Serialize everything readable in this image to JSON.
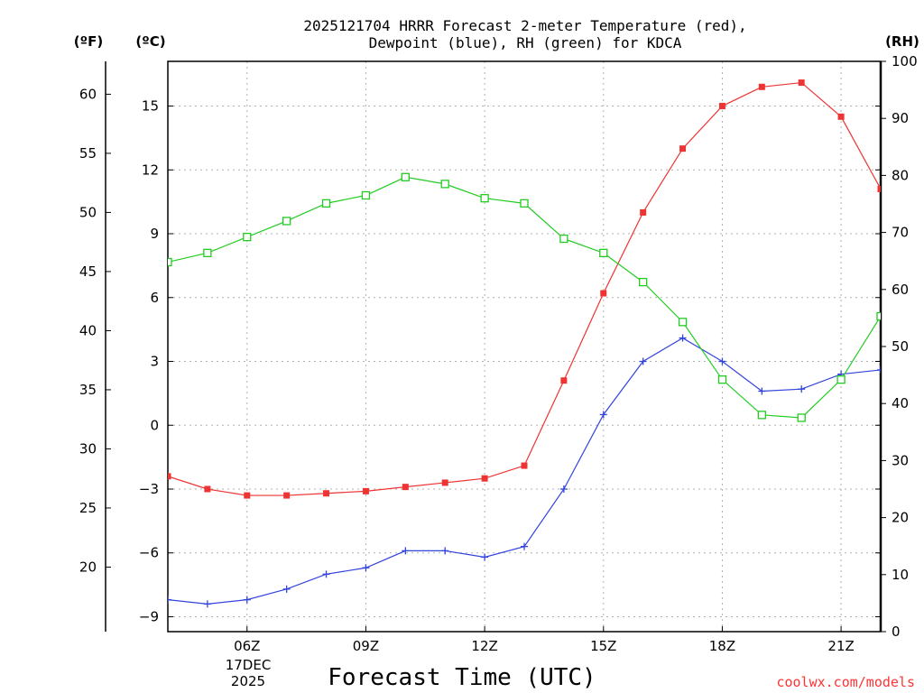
{
  "chart_data": {
    "type": "line",
    "title_line1": "2025121704 HRRR Forecast 2-meter Temperature (red),",
    "title_line2": "Dewpoint (blue), RH (green) for KDCA",
    "xlabel": "Forecast Time (UTC)",
    "date_label_day": "17DEC",
    "date_label_year": "2025",
    "credit": "coolwx.com/models",
    "unit_f": "(ºF)",
    "unit_c": "(ºC)",
    "unit_rh": "(RH)",
    "x_hours": [
      4,
      5,
      6,
      7,
      8,
      9,
      10,
      11,
      12,
      13,
      14,
      15,
      16,
      17,
      18,
      19,
      20,
      21,
      22
    ],
    "x_ticks": [
      {
        "hour": 6,
        "label": "06Z"
      },
      {
        "hour": 9,
        "label": "09Z"
      },
      {
        "hour": 12,
        "label": "12Z"
      },
      {
        "hour": 15,
        "label": "15Z"
      },
      {
        "hour": 18,
        "label": "18Z"
      },
      {
        "hour": 21,
        "label": "21Z"
      }
    ],
    "xlim": [
      4,
      22
    ],
    "ylim_c": [
      -9.7,
      17.1
    ],
    "ylim_rh": [
      0,
      100
    ],
    "c_ticks": [
      -9,
      -6,
      -3,
      0,
      3,
      6,
      9,
      12,
      15
    ],
    "f_ticks": [
      20,
      25,
      30,
      35,
      40,
      45,
      50,
      55,
      60
    ],
    "rh_ticks": [
      0,
      10,
      20,
      30,
      40,
      50,
      60,
      70,
      80,
      90,
      100
    ],
    "grid": true,
    "series": [
      {
        "name": "Temperature",
        "unit": "C",
        "color": "#ee3333",
        "marker": "filled-square",
        "values": [
          -2.4,
          -3.0,
          -3.3,
          -3.3,
          -3.2,
          -3.1,
          -2.9,
          -2.7,
          -2.5,
          -1.9,
          2.1,
          6.2,
          10.0,
          13.0,
          15.0,
          15.9,
          16.1,
          14.5,
          11.1
        ]
      },
      {
        "name": "Dewpoint",
        "unit": "C",
        "color": "#3344dd",
        "marker": "plus",
        "values": [
          -8.2,
          -8.4,
          -8.2,
          -7.7,
          -7.0,
          -6.7,
          -5.9,
          -5.9,
          -6.2,
          -5.7,
          -3.0,
          0.5,
          3.0,
          4.1,
          3.0,
          1.6,
          1.7,
          2.4,
          2.6
        ]
      },
      {
        "name": "RH",
        "unit": "%",
        "color": "#22cc22",
        "marker": "open-square",
        "values": [
          64.8,
          66.4,
          69.2,
          72.0,
          75.1,
          76.5,
          79.7,
          78.5,
          76.0,
          75.1,
          68.9,
          66.4,
          61.3,
          54.3,
          44.2,
          38.0,
          37.5,
          44.2,
          55.3
        ]
      }
    ]
  }
}
